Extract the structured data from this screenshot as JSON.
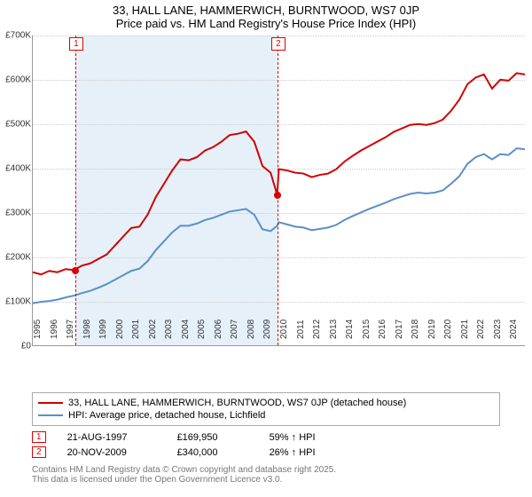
{
  "title_line1": "33, HALL LANE, HAMMERWICH, BURNTWOOD, WS7 0JP",
  "title_line2": "Price paid vs. HM Land Registry's House Price Index (HPI)",
  "chart": {
    "type": "line",
    "background_color": "#ffffff",
    "band_color": "#e6f0f8",
    "grid_color": "#cccccc",
    "axis_color": "#999999",
    "marker_color": "#d00000",
    "x_years": [
      "1995",
      "1996",
      "1997",
      "1998",
      "1999",
      "2000",
      "2001",
      "2002",
      "2003",
      "2004",
      "2005",
      "2006",
      "2007",
      "2008",
      "2009",
      "2010",
      "2011",
      "2012",
      "2013",
      "2014",
      "2015",
      "2016",
      "2017",
      "2018",
      "2019",
      "2020",
      "2021",
      "2022",
      "2023",
      "2024"
    ],
    "x_range_years": 30,
    "ylim": [
      0,
      700
    ],
    "ytick_step": 100,
    "ytick_labels": [
      "£0",
      "£100K",
      "£200K",
      "£300K",
      "£400K",
      "£500K",
      "£600K",
      "£700K"
    ],
    "band_start_year": 1997.6,
    "band_end_year": 2009.9,
    "series": [
      {
        "name": "property",
        "color": "#d00000",
        "width": 2,
        "label": "33, HALL LANE, HAMMERWICH, BURNTWOOD, WS7 0JP (detached house)",
        "points": [
          [
            1995,
            165
          ],
          [
            1995.5,
            160
          ],
          [
            1996,
            168
          ],
          [
            1996.5,
            165
          ],
          [
            1997,
            172
          ],
          [
            1997.5,
            170
          ],
          [
            1998,
            180
          ],
          [
            1998.5,
            185
          ],
          [
            1999,
            195
          ],
          [
            1999.5,
            205
          ],
          [
            2000,
            225
          ],
          [
            2000.5,
            245
          ],
          [
            2001,
            265
          ],
          [
            2001.5,
            268
          ],
          [
            2002,
            295
          ],
          [
            2002.5,
            335
          ],
          [
            2003,
            365
          ],
          [
            2003.5,
            395
          ],
          [
            2004,
            420
          ],
          [
            2004.5,
            418
          ],
          [
            2005,
            425
          ],
          [
            2005.5,
            440
          ],
          [
            2006,
            448
          ],
          [
            2006.5,
            460
          ],
          [
            2007,
            475
          ],
          [
            2007.5,
            478
          ],
          [
            2008,
            483
          ],
          [
            2008.5,
            460
          ],
          [
            2009,
            405
          ],
          [
            2009.5,
            390
          ],
          [
            2009.9,
            340
          ],
          [
            2010,
            398
          ],
          [
            2010.5,
            395
          ],
          [
            2011,
            390
          ],
          [
            2011.5,
            388
          ],
          [
            2012,
            380
          ],
          [
            2012.5,
            385
          ],
          [
            2013,
            388
          ],
          [
            2013.5,
            398
          ],
          [
            2014,
            415
          ],
          [
            2014.5,
            428
          ],
          [
            2015,
            440
          ],
          [
            2015.5,
            450
          ],
          [
            2016,
            460
          ],
          [
            2016.5,
            470
          ],
          [
            2017,
            482
          ],
          [
            2017.5,
            490
          ],
          [
            2018,
            498
          ],
          [
            2018.5,
            500
          ],
          [
            2019,
            498
          ],
          [
            2019.5,
            502
          ],
          [
            2020,
            510
          ],
          [
            2020.5,
            530
          ],
          [
            2021,
            555
          ],
          [
            2021.5,
            590
          ],
          [
            2022,
            605
          ],
          [
            2022.5,
            612
          ],
          [
            2023,
            580
          ],
          [
            2023.5,
            600
          ],
          [
            2024,
            598
          ],
          [
            2024.5,
            615
          ],
          [
            2025,
            612
          ]
        ]
      },
      {
        "name": "hpi",
        "color": "#5b8fc7",
        "width": 2,
        "label": "HPI: Average price, detached house, Lichfield",
        "points": [
          [
            1995,
            95
          ],
          [
            1995.5,
            98
          ],
          [
            1996,
            100
          ],
          [
            1996.5,
            103
          ],
          [
            1997,
            108
          ],
          [
            1997.5,
            112
          ],
          [
            1998,
            118
          ],
          [
            1998.5,
            123
          ],
          [
            1999,
            130
          ],
          [
            1999.5,
            138
          ],
          [
            2000,
            148
          ],
          [
            2000.5,
            158
          ],
          [
            2001,
            168
          ],
          [
            2001.5,
            173
          ],
          [
            2002,
            190
          ],
          [
            2002.5,
            215
          ],
          [
            2003,
            235
          ],
          [
            2003.5,
            255
          ],
          [
            2004,
            270
          ],
          [
            2004.5,
            270
          ],
          [
            2005,
            275
          ],
          [
            2005.5,
            283
          ],
          [
            2006,
            288
          ],
          [
            2006.5,
            295
          ],
          [
            2007,
            302
          ],
          [
            2007.5,
            305
          ],
          [
            2008,
            308
          ],
          [
            2008.5,
            295
          ],
          [
            2009,
            262
          ],
          [
            2009.5,
            258
          ],
          [
            2009.9,
            270
          ],
          [
            2010,
            278
          ],
          [
            2010.5,
            273
          ],
          [
            2011,
            268
          ],
          [
            2011.5,
            266
          ],
          [
            2012,
            260
          ],
          [
            2012.5,
            263
          ],
          [
            2013,
            266
          ],
          [
            2013.5,
            272
          ],
          [
            2014,
            283
          ],
          [
            2014.5,
            292
          ],
          [
            2015,
            300
          ],
          [
            2015.5,
            308
          ],
          [
            2016,
            315
          ],
          [
            2016.5,
            322
          ],
          [
            2017,
            330
          ],
          [
            2017.5,
            336
          ],
          [
            2018,
            342
          ],
          [
            2018.5,
            345
          ],
          [
            2019,
            343
          ],
          [
            2019.5,
            345
          ],
          [
            2020,
            350
          ],
          [
            2020.5,
            365
          ],
          [
            2021,
            382
          ],
          [
            2021.5,
            410
          ],
          [
            2022,
            425
          ],
          [
            2022.5,
            432
          ],
          [
            2023,
            420
          ],
          [
            2023.5,
            432
          ],
          [
            2024,
            430
          ],
          [
            2024.5,
            445
          ],
          [
            2025,
            443
          ]
        ]
      }
    ],
    "markers": [
      {
        "num": "1",
        "year": 1997.6,
        "price_k": 170
      },
      {
        "num": "2",
        "year": 2009.9,
        "price_k": 340
      }
    ]
  },
  "legend": [
    {
      "color": "#d00000",
      "label": "33, HALL LANE, HAMMERWICH, BURNTWOOD, WS7 0JP (detached house)"
    },
    {
      "color": "#5b8fc7",
      "label": "HPI: Average price, detached house, Lichfield"
    }
  ],
  "sales": [
    {
      "num": "1",
      "date": "21-AUG-1997",
      "price": "£169,950",
      "vs_hpi": "59% ↑ HPI"
    },
    {
      "num": "2",
      "date": "20-NOV-2009",
      "price": "£340,000",
      "vs_hpi": "26% ↑ HPI"
    }
  ],
  "footnote1": "Contains HM Land Registry data © Crown copyright and database right 2025.",
  "footnote2": "This data is licensed under the Open Government Licence v3.0."
}
